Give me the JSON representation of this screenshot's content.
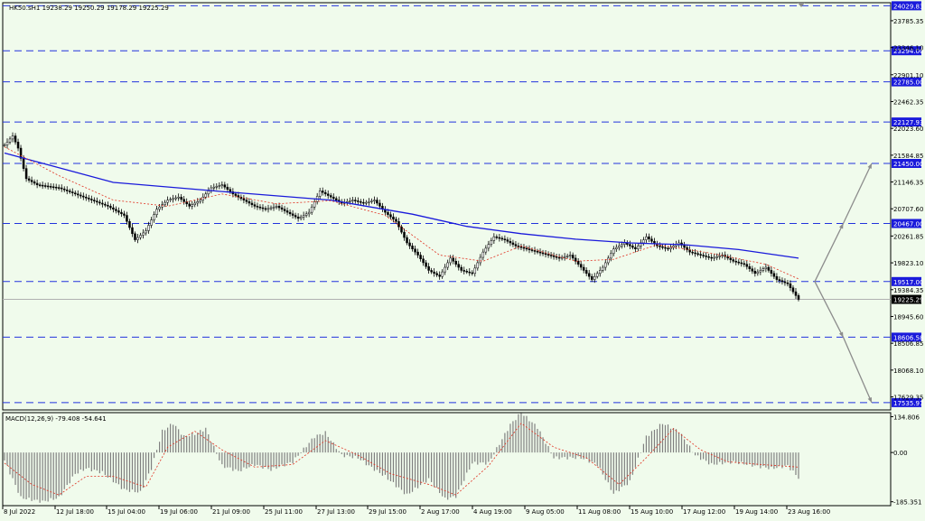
{
  "symbol_line": "HK50.sH1  19238.29 19250.29 19178.29 19225.29",
  "macd_label": "MACD(12,26,9) -79.408 -54.641",
  "colors": {
    "background": "#f0fbec",
    "grid": "#2233dd",
    "candle": "#000000",
    "ma_slow": "#1a1adb",
    "ma_fast": "#e03020",
    "macd_hist": "#808080",
    "signal": "#e03020",
    "badge": "#1a1adb",
    "current_badge": "#000000",
    "arrow": "#8c8c8c"
  },
  "chart_data": [
    {
      "type": "line",
      "pane": "price",
      "ylim": [
        17416,
        24080
      ],
      "y_ticks": [
        "23785.35",
        "23346.10",
        "22901.10",
        "22462.35",
        "22023.60",
        "21584.85",
        "21146.35",
        "20707.60",
        "20261.85",
        "19823.10",
        "19384.35",
        "18945.60",
        "18506.85",
        "18068.10",
        "17629.35"
      ],
      "y_tick_values": [
        23785.35,
        23346.1,
        22901.1,
        22462.35,
        22023.6,
        21584.85,
        21146.35,
        20707.6,
        20261.85,
        19823.1,
        19384.35,
        18945.6,
        18506.85,
        18068.1,
        17629.35
      ],
      "x_ticks": [
        "8 Jul 2022",
        "12 Jul 18:00",
        "15 Jul 04:00",
        "19 Jul 06:00",
        "21 Jul 09:00",
        "25 Jul 11:00",
        "27 Jul 13:00",
        "29 Jul 15:00",
        "2 Aug 17:00",
        "4 Aug 19:00",
        "9 Aug 05:00",
        "11 Aug 08:00",
        "15 Aug 10:00",
        "17 Aug 12:00",
        "19 Aug 14:00",
        "23 Aug 16:00"
      ],
      "levels": [
        "24029.83",
        "23294.00",
        "22785.00",
        "22127.93",
        "21450.00",
        "20467.00",
        "19517.00",
        "18606.58",
        "17535.97"
      ],
      "level_values": [
        24029.83,
        23294.0,
        22785.0,
        22127.93,
        21450.0,
        20467.0,
        19517.0,
        18606.58,
        17535.97
      ],
      "current_price": "19225.29",
      "current_price_value": 19225.29,
      "price_path": [
        [
          0,
          21750
        ],
        [
          3,
          21900
        ],
        [
          5,
          21700
        ],
        [
          8,
          21200
        ],
        [
          12,
          21100
        ],
        [
          20,
          21050
        ],
        [
          26,
          20950
        ],
        [
          32,
          20850
        ],
        [
          38,
          20750
        ],
        [
          44,
          20600
        ],
        [
          48,
          20200
        ],
        [
          52,
          20350
        ],
        [
          56,
          20700
        ],
        [
          60,
          20850
        ],
        [
          64,
          20900
        ],
        [
          68,
          20750
        ],
        [
          72,
          20850
        ],
        [
          76,
          21050
        ],
        [
          80,
          21100
        ],
        [
          84,
          20950
        ],
        [
          88,
          20850
        ],
        [
          92,
          20750
        ],
        [
          96,
          20700
        ],
        [
          100,
          20750
        ],
        [
          104,
          20650
        ],
        [
          108,
          20550
        ],
        [
          112,
          20650
        ],
        [
          116,
          21000
        ],
        [
          120,
          20900
        ],
        [
          124,
          20800
        ],
        [
          128,
          20850
        ],
        [
          132,
          20800
        ],
        [
          136,
          20850
        ],
        [
          140,
          20650
        ],
        [
          144,
          20500
        ],
        [
          148,
          20150
        ],
        [
          152,
          19950
        ],
        [
          156,
          19700
        ],
        [
          160,
          19600
        ],
        [
          164,
          19900
        ],
        [
          168,
          19700
        ],
        [
          172,
          19650
        ],
        [
          176,
          20000
        ],
        [
          180,
          20250
        ],
        [
          184,
          20200
        ],
        [
          188,
          20100
        ],
        [
          192,
          20050
        ],
        [
          196,
          20000
        ],
        [
          200,
          19950
        ],
        [
          204,
          19900
        ],
        [
          208,
          19950
        ],
        [
          212,
          19750
        ],
        [
          216,
          19550
        ],
        [
          220,
          19750
        ],
        [
          224,
          20050
        ],
        [
          228,
          20150
        ],
        [
          232,
          20050
        ],
        [
          236,
          20250
        ],
        [
          240,
          20100
        ],
        [
          244,
          20050
        ],
        [
          248,
          20150
        ],
        [
          252,
          20000
        ],
        [
          256,
          19950
        ],
        [
          260,
          19900
        ],
        [
          264,
          19950
        ],
        [
          268,
          19850
        ],
        [
          272,
          19800
        ],
        [
          276,
          19650
        ],
        [
          280,
          19750
        ],
        [
          284,
          19550
        ],
        [
          288,
          19480
        ],
        [
          290,
          19350
        ],
        [
          292,
          19225.29
        ]
      ],
      "ma_slow_path": [
        [
          0,
          21620
        ],
        [
          40,
          21140
        ],
        [
          80,
          20990
        ],
        [
          120,
          20850
        ],
        [
          150,
          20620
        ],
        [
          170,
          20420
        ],
        [
          190,
          20300
        ],
        [
          210,
          20210
        ],
        [
          230,
          20150
        ],
        [
          250,
          20120
        ],
        [
          270,
          20040
        ],
        [
          292,
          19900
        ]
      ],
      "ma_fast_path": [
        [
          0,
          21720
        ],
        [
          20,
          21250
        ],
        [
          40,
          20850
        ],
        [
          60,
          20750
        ],
        [
          80,
          20950
        ],
        [
          100,
          20790
        ],
        [
          120,
          20840
        ],
        [
          140,
          20600
        ],
        [
          160,
          19950
        ],
        [
          176,
          19850
        ],
        [
          190,
          20100
        ],
        [
          210,
          19850
        ],
        [
          224,
          19880
        ],
        [
          240,
          20120
        ],
        [
          260,
          19980
        ],
        [
          280,
          19800
        ],
        [
          292,
          19560
        ]
      ],
      "projection_up": [
        [
          0,
          19517.0
        ],
        [
          7,
          20467.0
        ],
        [
          14,
          21450.0
        ]
      ],
      "projection_down": [
        [
          0,
          19517.0
        ],
        [
          10,
          18606.58
        ],
        [
          20,
          17535.97
        ]
      ]
    },
    {
      "type": "bar",
      "pane": "macd",
      "name": "MACD(12,26,9)",
      "ylim": [
        -200,
        150
      ],
      "y_ticks": [
        "134.806",
        "0.00",
        "-185.351"
      ],
      "y_tick_values": [
        134.806,
        0,
        -185.351
      ],
      "macd_value": -79.408,
      "signal_value": -54.641,
      "hist_path": [
        [
          0,
          -30
        ],
        [
          6,
          -170
        ],
        [
          14,
          -185
        ],
        [
          20,
          -170
        ],
        [
          26,
          -80
        ],
        [
          30,
          -60
        ],
        [
          36,
          -75
        ],
        [
          44,
          -140
        ],
        [
          50,
          -150
        ],
        [
          54,
          -60
        ],
        [
          58,
          80
        ],
        [
          62,
          110
        ],
        [
          66,
          60
        ],
        [
          70,
          70
        ],
        [
          74,
          90
        ],
        [
          80,
          -50
        ],
        [
          86,
          -70
        ],
        [
          92,
          -45
        ],
        [
          98,
          -65
        ],
        [
          106,
          -35
        ],
        [
          114,
          60
        ],
        [
          118,
          75
        ],
        [
          124,
          -10
        ],
        [
          130,
          -20
        ],
        [
          134,
          -50
        ],
        [
          140,
          -90
        ],
        [
          148,
          -160
        ],
        [
          152,
          -130
        ],
        [
          156,
          -100
        ],
        [
          162,
          -175
        ],
        [
          166,
          -165
        ],
        [
          172,
          -40
        ],
        [
          178,
          -40
        ],
        [
          186,
          105
        ],
        [
          190,
          150
        ],
        [
          196,
          95
        ],
        [
          202,
          -20
        ],
        [
          212,
          -20
        ],
        [
          218,
          -45
        ],
        [
          224,
          -155
        ],
        [
          230,
          -110
        ],
        [
          236,
          60
        ],
        [
          242,
          110
        ],
        [
          248,
          80
        ],
        [
          254,
          -10
        ],
        [
          260,
          -45
        ],
        [
          268,
          -35
        ],
        [
          276,
          -50
        ],
        [
          282,
          -60
        ],
        [
          288,
          -50
        ],
        [
          292,
          -95
        ]
      ],
      "signal_path": [
        [
          0,
          -40
        ],
        [
          10,
          -120
        ],
        [
          20,
          -160
        ],
        [
          30,
          -90
        ],
        [
          40,
          -90
        ],
        [
          52,
          -130
        ],
        [
          60,
          20
        ],
        [
          70,
          80
        ],
        [
          80,
          10
        ],
        [
          92,
          -55
        ],
        [
          106,
          -45
        ],
        [
          118,
          45
        ],
        [
          130,
          -10
        ],
        [
          142,
          -80
        ],
        [
          156,
          -120
        ],
        [
          166,
          -160
        ],
        [
          178,
          -50
        ],
        [
          190,
          110
        ],
        [
          202,
          20
        ],
        [
          214,
          -20
        ],
        [
          226,
          -120
        ],
        [
          236,
          -20
        ],
        [
          246,
          90
        ],
        [
          256,
          10
        ],
        [
          266,
          -35
        ],
        [
          278,
          -45
        ],
        [
          292,
          -55
        ]
      ]
    }
  ]
}
